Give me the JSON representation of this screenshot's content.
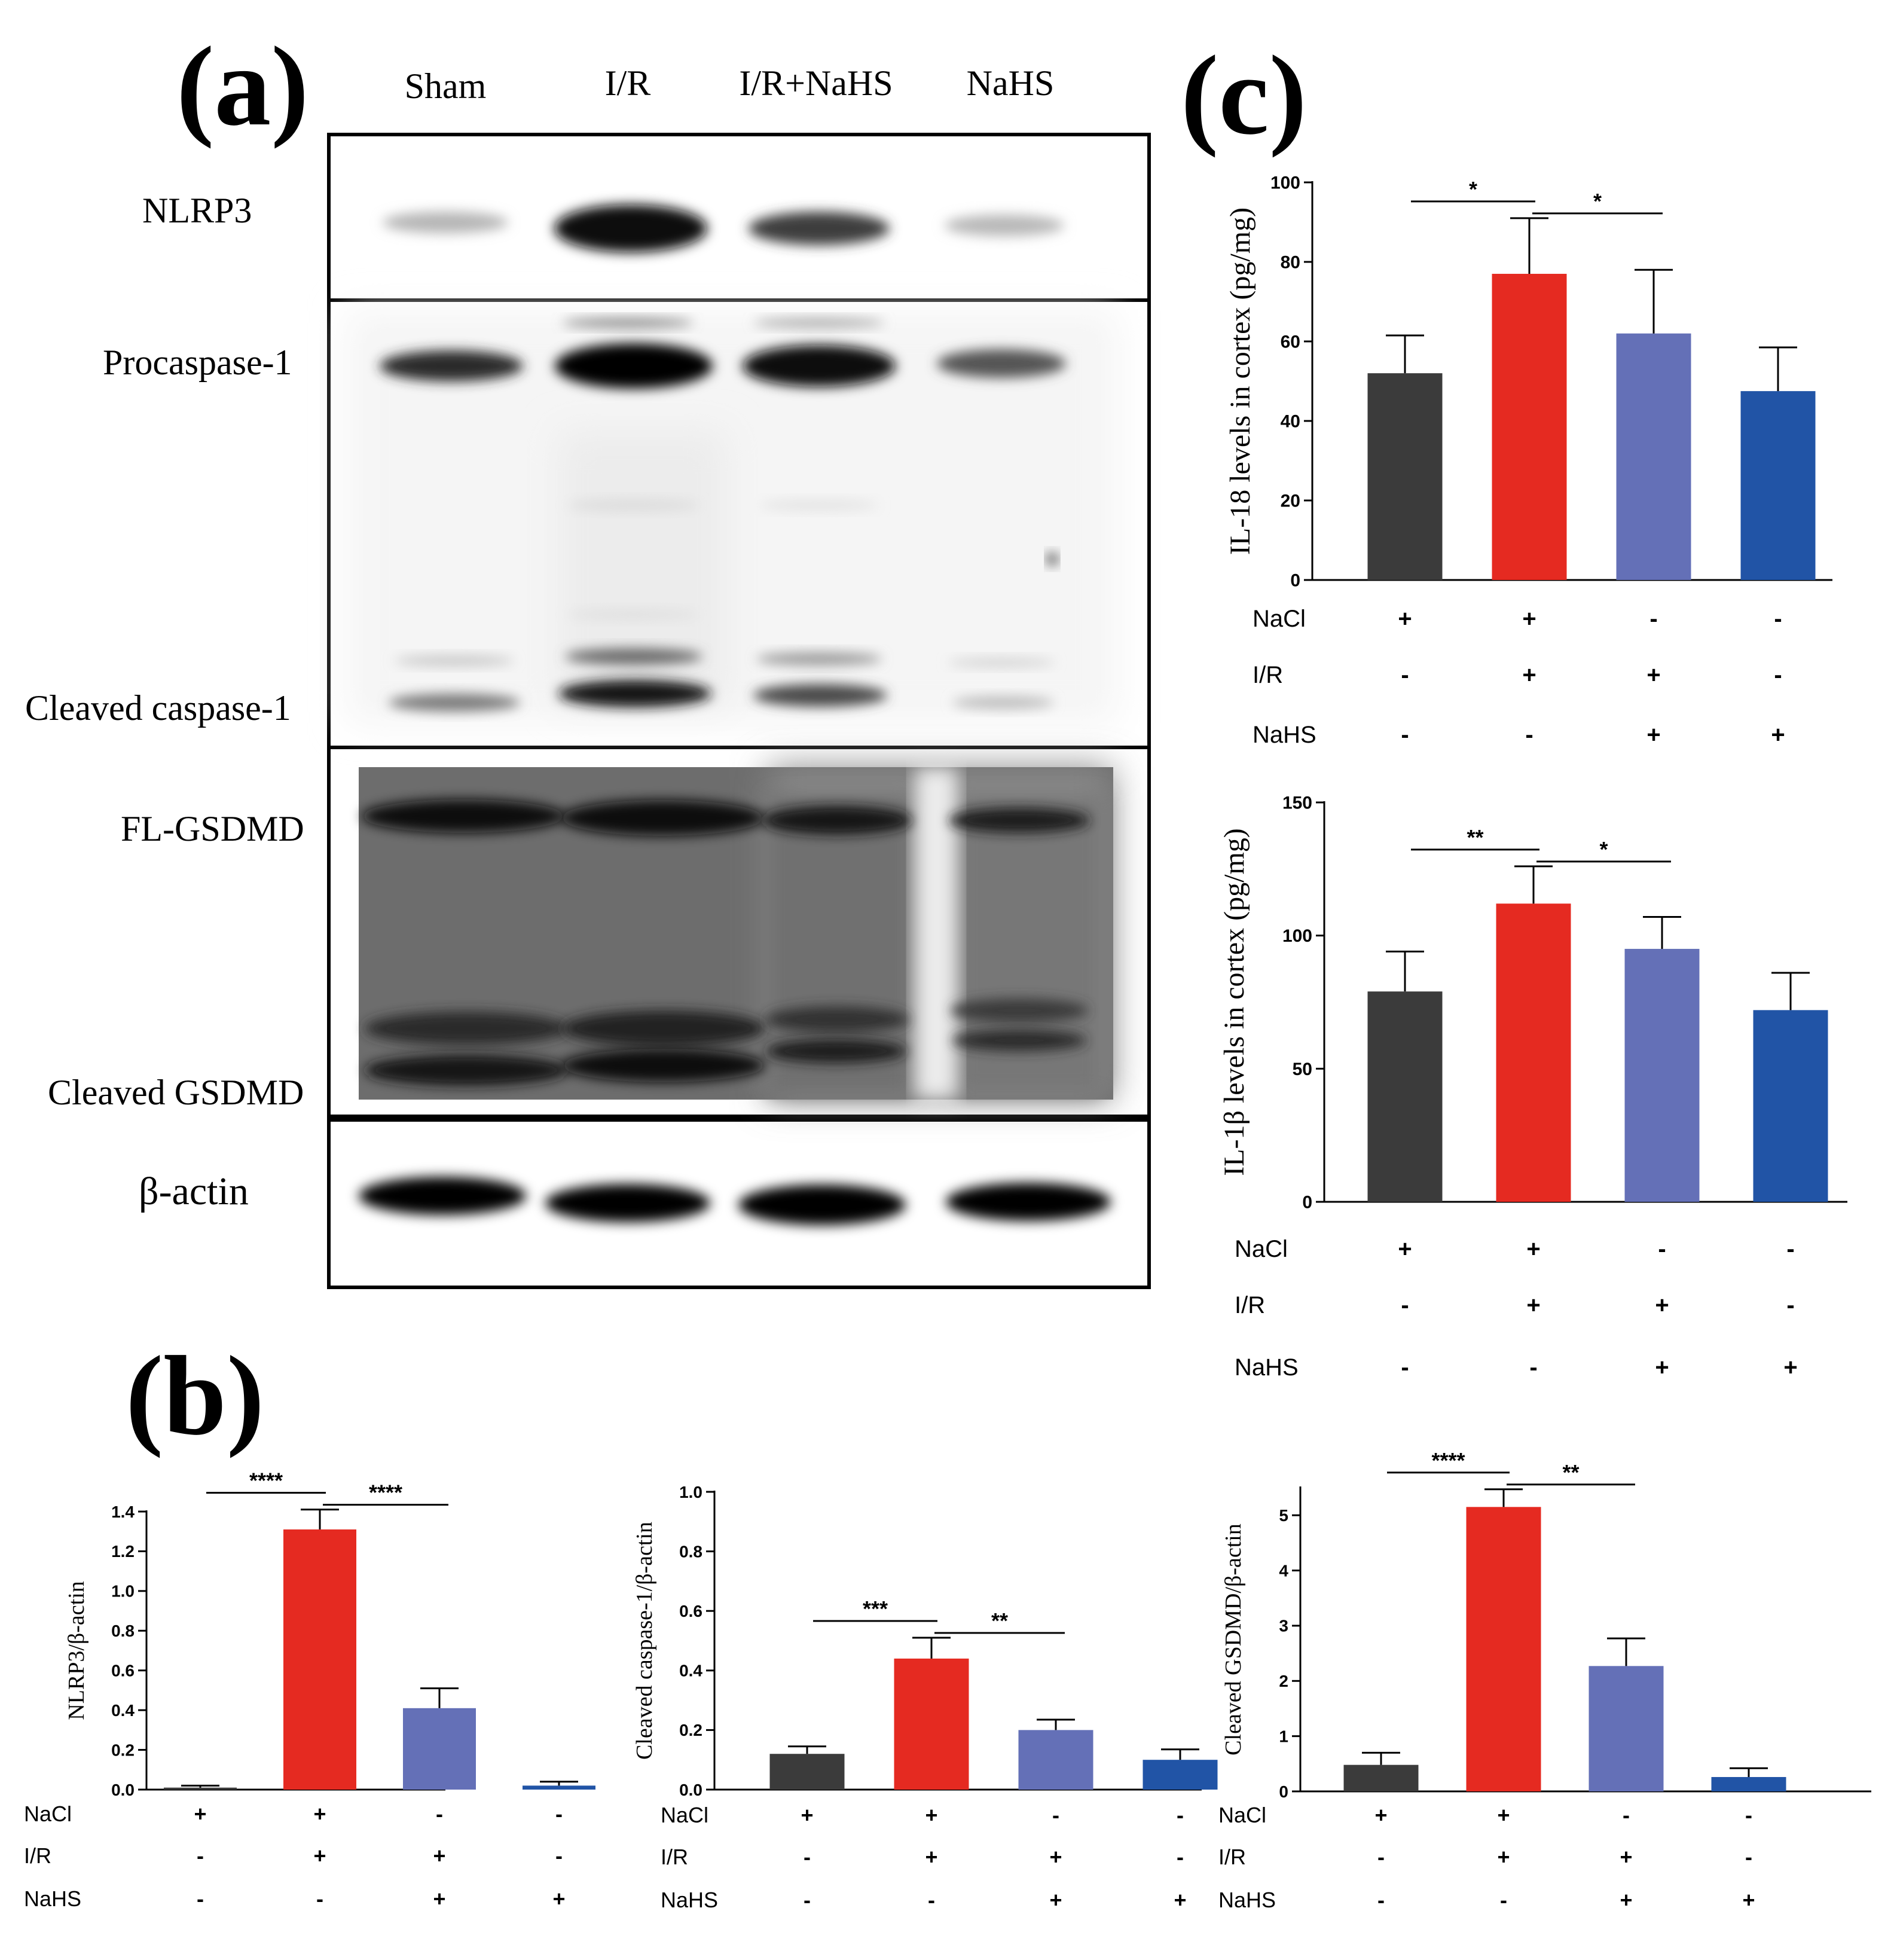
{
  "panels": {
    "a": "(a)",
    "b": "(b)",
    "c": "(c)"
  },
  "blot": {
    "lanes": [
      "Sham",
      "I/R",
      "I/R+NaHS",
      "NaHS"
    ],
    "bands": {
      "nlrp3": "NLRP3",
      "procaspase": "Procaspase-1",
      "cleaved_caspase": "Cleaved caspase-1",
      "fl_gsdmd": "FL-GSDMD",
      "cleaved_gsdmd": "Cleaved GSDMD",
      "actin": "β-actin"
    }
  },
  "treatment_rows": [
    {
      "name": "NaCl",
      "signs": [
        "+",
        "+",
        "-",
        "-"
      ]
    },
    {
      "name": "I/R",
      "signs": [
        "-",
        "+",
        "+",
        "-"
      ]
    },
    {
      "name": "NaHS",
      "signs": [
        "-",
        "-",
        "+",
        "+"
      ]
    }
  ],
  "colors": {
    "group1": "#3b3b3b",
    "group2": "#e52a21",
    "group3": "#6470b7",
    "group4": "#2154a6"
  },
  "chart_data": [
    {
      "id": "b1",
      "type": "bar",
      "title": "",
      "xlabel": "",
      "ylabel": "NLRP3/β-actin",
      "ylim": [
        0,
        1.4
      ],
      "yticks": [
        "0.0",
        "0.2",
        "0.4",
        "0.6",
        "0.8",
        "1.0",
        "1.2",
        "1.4"
      ],
      "categories": [
        "1",
        "2",
        "3",
        "4"
      ],
      "values": [
        0.01,
        1.31,
        0.41,
        0.02
      ],
      "errors": [
        0.01,
        0.1,
        0.1,
        0.02
      ],
      "significance": [
        {
          "from": 0,
          "to": 1,
          "label": "****"
        },
        {
          "from": 1,
          "to": 2,
          "label": "****"
        }
      ]
    },
    {
      "id": "b2",
      "type": "bar",
      "title": "",
      "xlabel": "",
      "ylabel": "Cleaved caspase-1/β-actin",
      "ylim": [
        0,
        1.0
      ],
      "yticks": [
        "0.0",
        "0.2",
        "0.4",
        "0.6",
        "0.8",
        "1.0"
      ],
      "categories": [
        "1",
        "2",
        "3",
        "4"
      ],
      "values": [
        0.12,
        0.44,
        0.2,
        0.1
      ],
      "errors": [
        0.025,
        0.07,
        0.035,
        0.035
      ],
      "significance": [
        {
          "from": 0,
          "to": 1,
          "label": "***"
        },
        {
          "from": 1,
          "to": 2,
          "label": "**"
        }
      ]
    },
    {
      "id": "b3",
      "type": "bar",
      "title": "",
      "xlabel": "",
      "ylabel": "Cleaved GSDMD/β-actin",
      "ylim": [
        0,
        5.5
      ],
      "yticks": [
        "0",
        "1",
        "2",
        "3",
        "4",
        "5"
      ],
      "categories": [
        "1",
        "2",
        "3",
        "4"
      ],
      "values": [
        0.48,
        5.15,
        2.27,
        0.26
      ],
      "errors": [
        0.22,
        0.32,
        0.5,
        0.16
      ],
      "significance": [
        {
          "from": 0,
          "to": 1,
          "label": "****"
        },
        {
          "from": 1,
          "to": 2,
          "label": "**"
        }
      ]
    },
    {
      "id": "c1",
      "type": "bar",
      "title": "",
      "xlabel": "",
      "ylabel": "IL-18 levels in cortex (pg/mg)",
      "ylim": [
        0,
        100
      ],
      "yticks": [
        "0",
        "20",
        "40",
        "60",
        "80",
        "100"
      ],
      "categories": [
        "1",
        "2",
        "3",
        "4"
      ],
      "values": [
        52,
        77,
        62,
        47.5
      ],
      "errors": [
        9.5,
        14,
        16,
        11
      ],
      "significance": [
        {
          "from": 0,
          "to": 1,
          "label": "*"
        },
        {
          "from": 1,
          "to": 2,
          "label": "*"
        }
      ]
    },
    {
      "id": "c2",
      "type": "bar",
      "title": "",
      "xlabel": "",
      "ylabel": "IL-1β levels in cortex (pg/mg)",
      "ylim": [
        0,
        150
      ],
      "yticks": [
        "0",
        "50",
        "100",
        "150"
      ],
      "categories": [
        "1",
        "2",
        "3",
        "4"
      ],
      "values": [
        79,
        112,
        95,
        72
      ],
      "errors": [
        15,
        14,
        12,
        14
      ],
      "significance": [
        {
          "from": 0,
          "to": 1,
          "label": "**"
        },
        {
          "from": 1,
          "to": 2,
          "label": "*"
        }
      ]
    }
  ]
}
